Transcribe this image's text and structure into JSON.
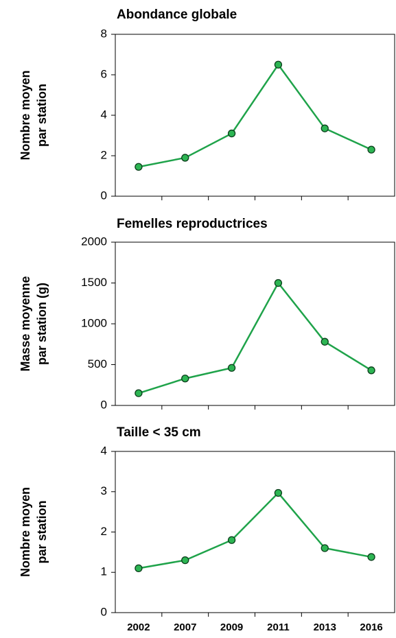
{
  "chart_data": [
    {
      "type": "line",
      "title": "Abondance globale",
      "ylabel": [
        "Nombre moyen",
        "par station"
      ],
      "series": [
        {
          "color": "#1fa34a",
          "values": [
            1.45,
            1.9,
            3.1,
            6.5,
            3.35,
            2.3
          ]
        }
      ],
      "ylim": [
        0,
        8
      ],
      "yticks": [
        0,
        2,
        4,
        6,
        8
      ]
    },
    {
      "type": "line",
      "title": "Femelles reproductrices",
      "ylabel": [
        "Masse moyenne",
        "par station (g)"
      ],
      "series": [
        {
          "color": "#1fa34a",
          "values": [
            150,
            330,
            460,
            1500,
            780,
            430
          ]
        }
      ],
      "ylim": [
        0,
        2000
      ],
      "yticks": [
        0,
        500,
        1000,
        1500,
        2000
      ]
    },
    {
      "type": "line",
      "title": "Taille < 35 cm",
      "ylabel": [
        "Nombre moyen",
        "par station"
      ],
      "categories": [
        "2002",
        "2007",
        "2009",
        "2011",
        "2013",
        "2016"
      ],
      "series": [
        {
          "color": "#1fa34a",
          "values": [
            1.1,
            1.3,
            1.8,
            2.97,
            1.6,
            1.38
          ]
        }
      ],
      "ylim": [
        0,
        4
      ],
      "yticks": [
        0,
        1,
        2,
        3,
        4
      ]
    }
  ]
}
